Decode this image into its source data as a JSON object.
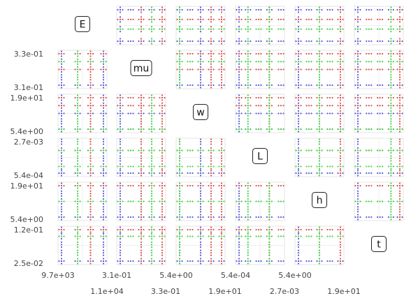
{
  "chart_data": {
    "type": "scatter",
    "variables": [
      "E",
      "mu",
      "w",
      "L",
      "h",
      "t"
    ],
    "diagonal_labels": [
      "E",
      "mu",
      "w",
      "L",
      "h",
      "t"
    ],
    "ranges": [
      [
        9700,
        11000
      ],
      [
        0.31,
        0.33
      ],
      [
        5.4,
        19
      ],
      [
        0.00054,
        0.0027
      ],
      [
        5.4,
        19
      ],
      [
        0.025,
        0.12
      ]
    ],
    "y_tick_labels": [
      [
        "3.3e-01",
        "3.1e-01"
      ],
      [
        "1.9e+01",
        "5.4e+00"
      ],
      [
        "2.7e-03",
        "5.4e-04"
      ],
      [
        "1.9e+01",
        "5.4e+00"
      ],
      [
        "1.2e-01",
        "2.5e-02"
      ]
    ],
    "x_tick_labels_top_row": [
      "9.7e+03",
      "3.1e-01",
      "5.4e+00",
      "5.4e-04",
      "5.4e+00"
    ],
    "x_tick_labels_bottom_row": [
      "1.1e+04",
      "3.3e-01",
      "1.9e+01",
      "2.7e-03",
      "1.9e+01"
    ],
    "levels": [
      [
        9700,
        10200,
        10600,
        11000
      ],
      [
        0.31,
        0.315,
        0.32,
        0.325,
        0.33
      ],
      [
        5.4,
        8.8,
        12.2,
        15.6,
        19
      ],
      [
        0.00054,
        0.001,
        0.00155,
        0.0021,
        0.0027
      ],
      [
        5.4,
        8.8,
        12.2,
        15.6,
        19
      ],
      [
        0.025,
        0.05,
        0.075,
        0.1,
        0.12
      ]
    ],
    "series": [
      {
        "color": "#5b5bd6",
        "values": [
          [
            9700,
            11000
          ],
          [
            0.31
          ],
          [
            5.4,
            12.2
          ],
          [
            0.00054
          ],
          [
            5.4
          ],
          [
            0.025
          ]
        ]
      },
      {
        "color": "#d9534f",
        "values": [
          [
            10600
          ],
          [
            0.32,
            0.33
          ],
          [
            15.6,
            19
          ],
          [
            0.0021
          ],
          [
            19
          ],
          [
            0.12
          ]
        ]
      },
      {
        "color": "#44d044",
        "values": [
          [
            10200
          ],
          [
            0.325
          ],
          [
            5.4
          ],
          [
            0.001,
            0.0021
          ],
          [
            12.2
          ],
          [
            0.1
          ]
        ]
      }
    ],
    "grid": true,
    "legend": "none"
  }
}
